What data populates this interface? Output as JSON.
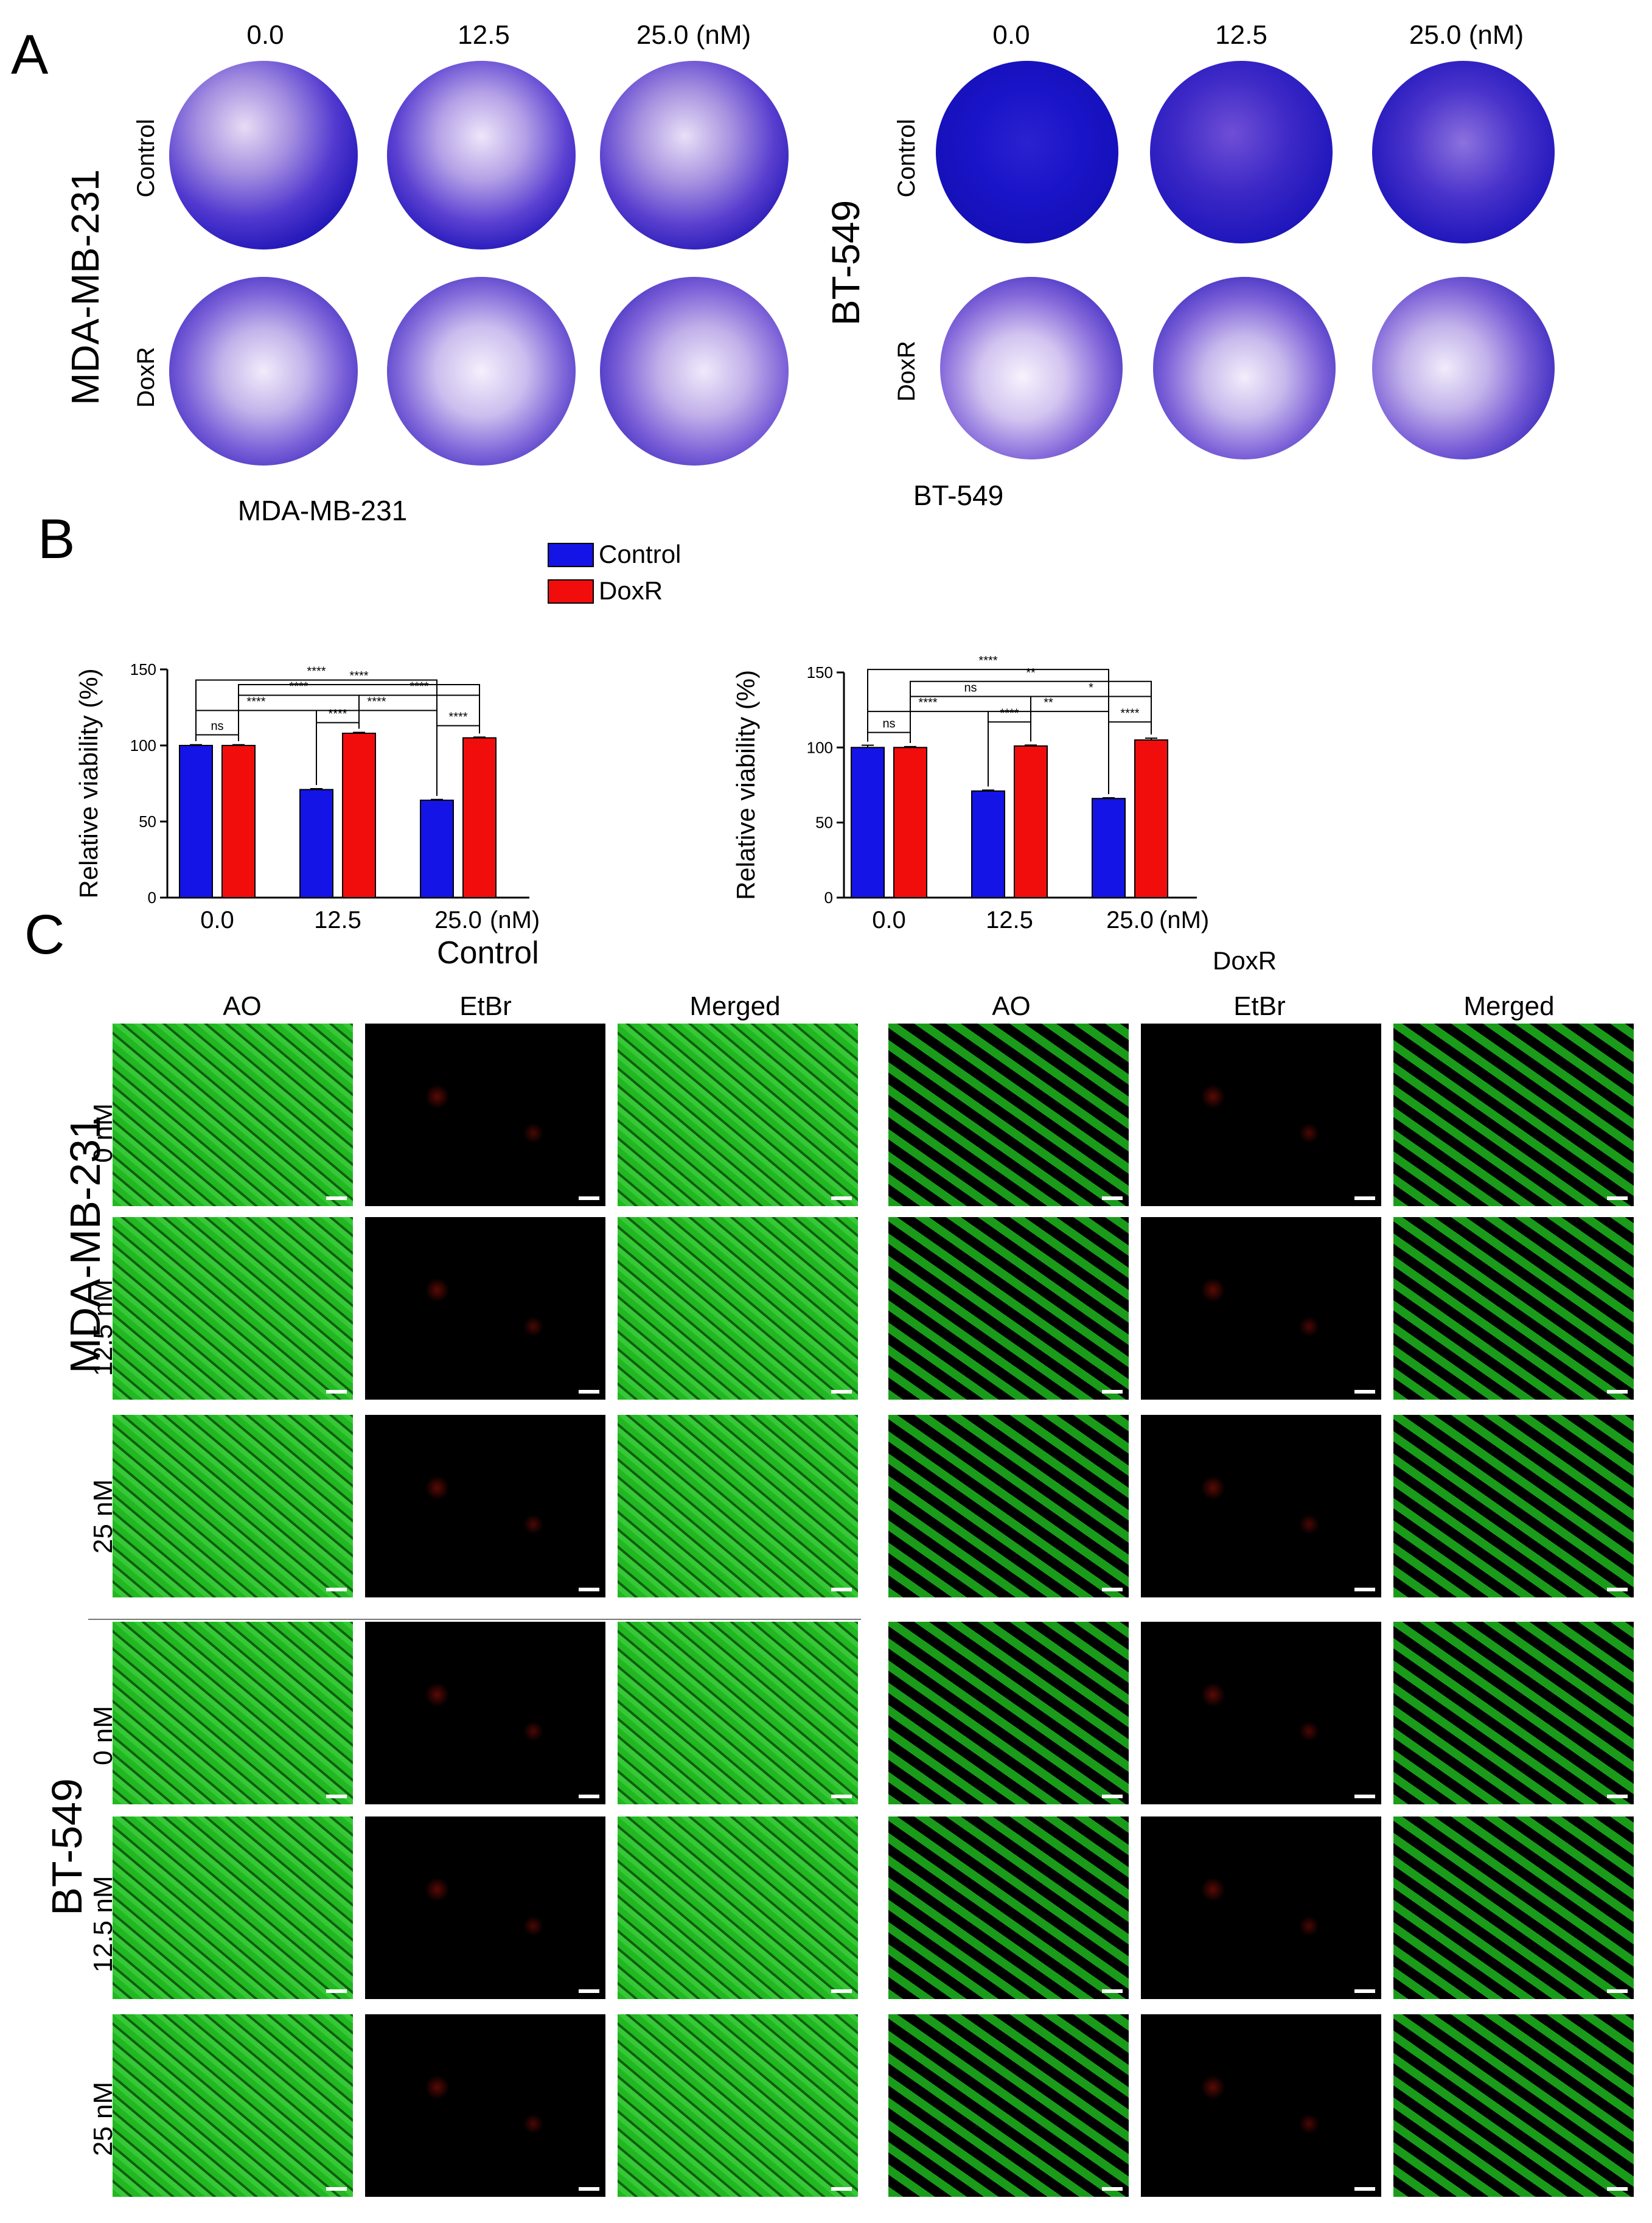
{
  "panels": {
    "a": "A",
    "b": "B",
    "c": "C"
  },
  "panel_a": {
    "left": {
      "cell_line": "MDA-MB-231",
      "concentrations": [
        "0.0",
        "12.5",
        "25.0 (nM)"
      ],
      "rows": [
        "Control",
        "DoxR"
      ]
    },
    "right": {
      "cell_line": "BT-549",
      "concentrations": [
        "0.0",
        "12.5",
        "25.0 (nM)"
      ],
      "rows": [
        "Control",
        "DoxR"
      ]
    }
  },
  "legend": {
    "items": [
      "Control",
      "DoxR"
    ],
    "colors": [
      "#1414e6",
      "#f20d0d"
    ]
  },
  "chart_data": [
    {
      "type": "bar",
      "title": "MDA-MB-231",
      "ylabel": "Relative viability (%)",
      "categories": [
        "0.0",
        "12.5",
        "25.0"
      ],
      "x_unit": "(nM)",
      "ylim": [
        0,
        150
      ],
      "yticks": [
        "0",
        "50",
        "100",
        "150"
      ],
      "series": [
        {
          "name": "Control",
          "values": [
            100,
            71,
            64
          ],
          "errors": [
            0.5,
            0.6,
            0.5
          ]
        },
        {
          "name": "DoxR",
          "values": [
            100,
            108,
            105
          ],
          "errors": [
            0.5,
            0.6,
            0.5
          ]
        }
      ],
      "significance": [
        {
          "label": "ns",
          "from": "0.0 Control",
          "to": "0.0 DoxR"
        },
        {
          "label": "****",
          "from": "12.5 Control",
          "to": "12.5 DoxR"
        },
        {
          "label": "****",
          "from": "25.0 Control",
          "to": "25.0 DoxR"
        },
        {
          "label": "****",
          "from": "0.0 Control",
          "to": "12.5 Control"
        },
        {
          "label": "****",
          "from": "12.5 Control",
          "to": "25.0 Control"
        },
        {
          "label": "****",
          "from": "0.0 DoxR",
          "to": "12.5 DoxR"
        },
        {
          "label": "****",
          "from": "12.5 DoxR",
          "to": "25.0 DoxR"
        },
        {
          "label": "****",
          "from": "0.0 Control",
          "to": "25.0 Control"
        },
        {
          "label": "****",
          "from": "0.0 DoxR",
          "to": "25.0 DoxR"
        }
      ]
    },
    {
      "type": "bar",
      "title": "BT-549",
      "ylabel": "Relative viability (%)",
      "categories": [
        "0.0",
        "12.5",
        "25.0"
      ],
      "x_unit": "(nM)",
      "ylim": [
        0,
        150
      ],
      "yticks": [
        "0",
        "50",
        "100",
        "150"
      ],
      "series": [
        {
          "name": "Control",
          "values": [
            100,
            71,
            66
          ],
          "errors": [
            1.5,
            0.6,
            0.5
          ]
        },
        {
          "name": "DoxR",
          "values": [
            100,
            101,
            105
          ],
          "errors": [
            0.6,
            0.6,
            1.2
          ]
        }
      ],
      "significance": [
        {
          "label": "ns",
          "from": "0.0 Control",
          "to": "0.0 DoxR"
        },
        {
          "label": "****",
          "from": "12.5 Control",
          "to": "12.5 DoxR"
        },
        {
          "label": "****",
          "from": "25.0 Control",
          "to": "25.0 DoxR"
        },
        {
          "label": "****",
          "from": "0.0 Control",
          "to": "12.5 Control"
        },
        {
          "label": "**",
          "from": "12.5 Control",
          "to": "25.0 Control"
        },
        {
          "label": "ns",
          "from": "0.0 DoxR",
          "to": "12.5 DoxR"
        },
        {
          "label": "*",
          "from": "12.5 DoxR",
          "to": "25.0 DoxR"
        },
        {
          "label": "****",
          "from": "0.0 Control",
          "to": "25.0 Control"
        },
        {
          "label": "**",
          "from": "0.0 DoxR",
          "to": "25.0 DoxR"
        }
      ]
    }
  ],
  "panel_c": {
    "groups": [
      "Control",
      "DoxR"
    ],
    "columns": [
      "AO",
      "EtBr",
      "Merged"
    ],
    "cell_lines": [
      "MDA-MB-231",
      "BT-549"
    ],
    "row_labels": [
      "0 nM",
      "12.5 nM",
      "25 nM"
    ]
  }
}
